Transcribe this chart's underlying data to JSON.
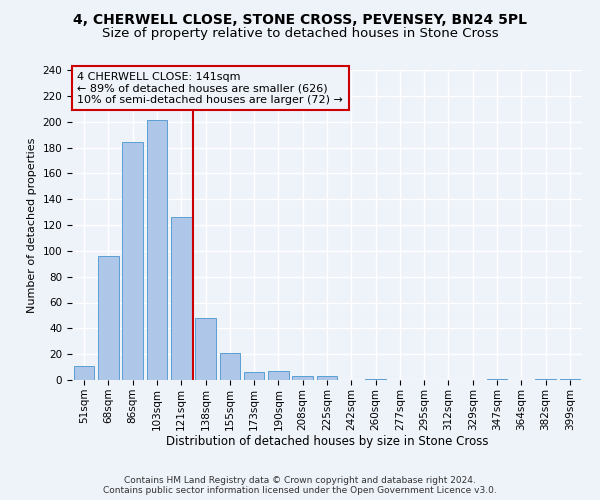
{
  "title_line1": "4, CHERWELL CLOSE, STONE CROSS, PEVENSEY, BN24 5PL",
  "title_line2": "Size of property relative to detached houses in Stone Cross",
  "xlabel": "Distribution of detached houses by size in Stone Cross",
  "ylabel": "Number of detached properties",
  "bar_color": "#aec6e8",
  "bar_edge_color": "#5a9fd4",
  "annotation_line1": "4 CHERWELL CLOSE: 141sqm",
  "annotation_line2": "← 89% of detached houses are smaller (626)",
  "annotation_line3": "10% of semi-detached houses are larger (72) →",
  "footer_line1": "Contains HM Land Registry data © Crown copyright and database right 2024.",
  "footer_line2": "Contains public sector information licensed under the Open Government Licence v3.0.",
  "categories": [
    "51sqm",
    "68sqm",
    "86sqm",
    "103sqm",
    "121sqm",
    "138sqm",
    "155sqm",
    "173sqm",
    "190sqm",
    "208sqm",
    "225sqm",
    "242sqm",
    "260sqm",
    "277sqm",
    "295sqm",
    "312sqm",
    "329sqm",
    "347sqm",
    "364sqm",
    "382sqm",
    "399sqm"
  ],
  "values": [
    11,
    96,
    184,
    201,
    126,
    48,
    21,
    6,
    7,
    3,
    3,
    0,
    1,
    0,
    0,
    0,
    0,
    1,
    0,
    1,
    1
  ],
  "ylim": [
    0,
    240
  ],
  "yticks": [
    0,
    20,
    40,
    60,
    80,
    100,
    120,
    140,
    160,
    180,
    200,
    220,
    240
  ],
  "bg_color": "#eef2f9",
  "grid_color": "#ffffff",
  "annotation_box_color": "#cc0000",
  "property_line_color": "#cc0000",
  "bar_width": 0.85,
  "title_fontsize": 10,
  "subtitle_fontsize": 9.5,
  "xlabel_fontsize": 8.5,
  "ylabel_fontsize": 8,
  "tick_fontsize": 7.5,
  "annotation_fontsize": 8,
  "footer_fontsize": 6.5
}
